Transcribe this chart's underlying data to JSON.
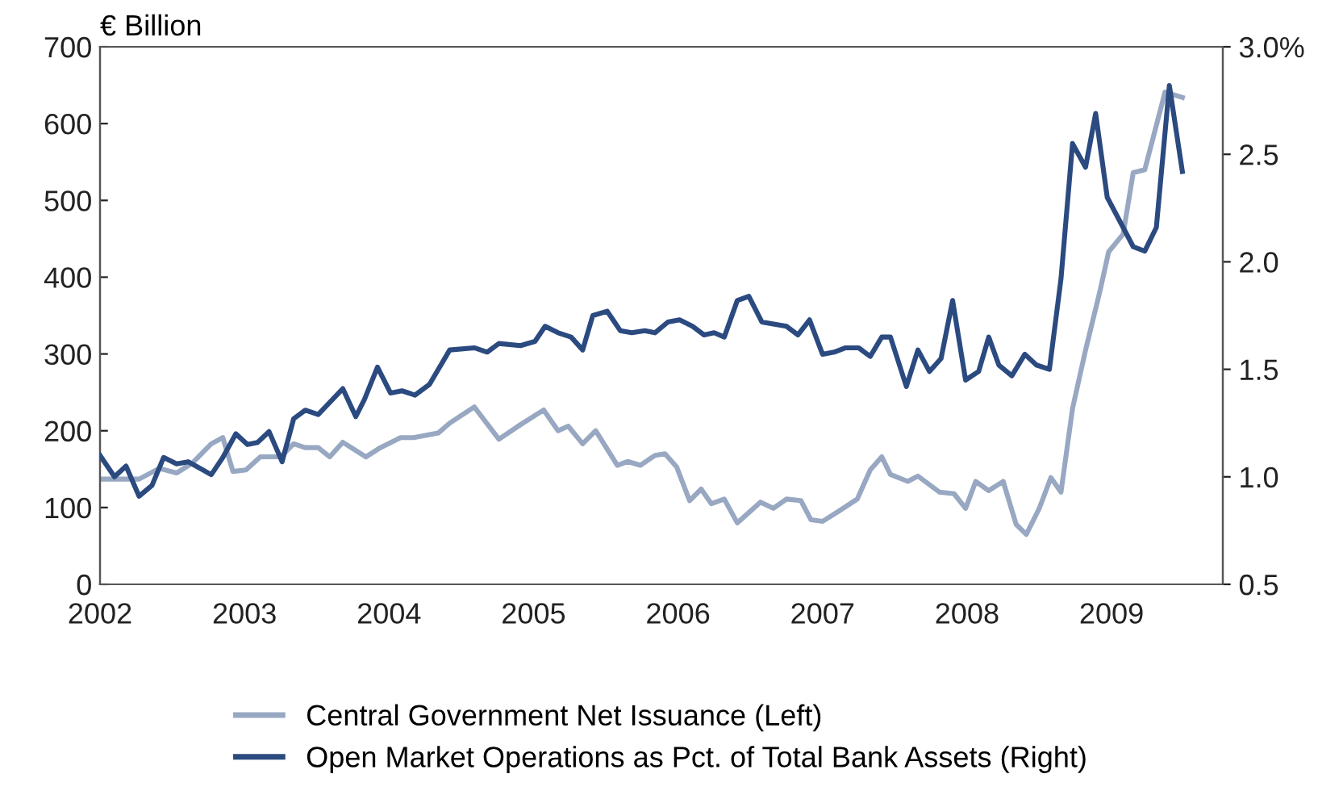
{
  "chart_data": {
    "type": "line",
    "ylabel": "€ Billion",
    "legend": "bottom",
    "grid": false,
    "marker": "none",
    "line_style": "solid",
    "xlim": [
      2002,
      2009.77
    ],
    "xticks": [
      2002,
      2003,
      2004,
      2005,
      2006,
      2007,
      2008,
      2009
    ],
    "ylim": [
      0,
      700
    ],
    "yticks": [
      0,
      100,
      200,
      300,
      400,
      500,
      600,
      700
    ],
    "y2lim": [
      0.5,
      3.0
    ],
    "y2ticks": [
      {
        "value": 0.5,
        "label": "0.5"
      },
      {
        "value": 1.0,
        "label": "1.0"
      },
      {
        "value": 1.5,
        "label": "1.5"
      },
      {
        "value": 2.0,
        "label": "2.0"
      },
      {
        "value": 2.5,
        "label": "2.5"
      },
      {
        "value": 3.0,
        "label": "3.0%"
      }
    ],
    "series": [
      {
        "name": "Central Government Net Issuance (Left)",
        "color": "#98a8c2",
        "x": [
          2002.0,
          2002.1,
          2002.27,
          2002.41,
          2002.53,
          2002.64,
          2002.77,
          2002.85,
          2002.92,
          2003.01,
          2003.11,
          2003.25,
          2003.34,
          2003.42,
          2003.51,
          2003.59,
          2003.68,
          2003.84,
          2003.94,
          2004.08,
          2004.17,
          2004.34,
          2004.42,
          2004.59,
          2004.76,
          2004.91,
          2005.07,
          2005.17,
          2005.24,
          2005.34,
          2005.43,
          2005.58,
          2005.65,
          2005.74,
          2005.84,
          2005.91,
          2005.99,
          2006.08,
          2006.16,
          2006.23,
          2006.32,
          2006.41,
          2006.57,
          2006.66,
          2006.75,
          2006.85,
          2006.92,
          2007.0,
          2007.11,
          2007.24,
          2007.33,
          2007.41,
          2007.47,
          2007.59,
          2007.66,
          2007.81,
          2007.91,
          2007.99,
          2008.06,
          2008.15,
          2008.25,
          2008.34,
          2008.41,
          2008.5,
          2008.58,
          2008.65,
          2008.73,
          2008.82,
          2008.92,
          2008.98,
          2009.08,
          2009.15,
          2009.23,
          2009.37,
          2009.49
        ],
        "values": [
          137,
          137,
          137,
          151,
          145,
          158,
          183,
          191,
          147,
          149,
          166,
          166,
          183,
          178,
          178,
          166,
          185,
          166,
          178,
          191,
          191,
          197,
          210,
          231,
          189,
          208,
          227,
          200,
          206,
          183,
          200,
          155,
          160,
          155,
          168,
          170,
          153,
          109,
          124,
          105,
          111,
          80,
          107,
          99,
          111,
          109,
          84,
          82,
          95,
          111,
          149,
          166,
          143,
          134,
          141,
          120,
          118,
          99,
          134,
          122,
          134,
          78,
          65,
          99,
          139,
          120,
          229,
          305,
          382,
          433,
          456,
          536,
          540,
          641,
          634
        ]
      },
      {
        "name": "Open Market Operations as Pct. of Total Bank Assets (Right)",
        "color": "#2b4a80",
        "axis": "y2",
        "x": [
          2002.0,
          2002.1,
          2002.18,
          2002.27,
          2002.36,
          2002.44,
          2002.53,
          2002.61,
          2002.77,
          2002.85,
          2002.94,
          2003.02,
          2003.09,
          2003.17,
          2003.26,
          2003.34,
          2003.42,
          2003.51,
          2003.68,
          2003.77,
          2003.83,
          2003.92,
          2004.01,
          2004.09,
          2004.18,
          2004.28,
          2004.42,
          2004.59,
          2004.68,
          2004.76,
          2004.91,
          2005.01,
          2005.08,
          2005.17,
          2005.26,
          2005.34,
          2005.41,
          2005.51,
          2005.6,
          2005.68,
          2005.77,
          2005.84,
          2005.93,
          2006.01,
          2006.1,
          2006.18,
          2006.25,
          2006.32,
          2006.41,
          2006.49,
          2006.58,
          2006.75,
          2006.83,
          2006.91,
          2007.0,
          2007.08,
          2007.16,
          2007.25,
          2007.33,
          2007.41,
          2007.47,
          2007.58,
          2007.66,
          2007.74,
          2007.82,
          2007.9,
          2007.99,
          2008.08,
          2008.15,
          2008.22,
          2008.31,
          2008.4,
          2008.48,
          2008.57,
          2008.65,
          2008.73,
          2008.82,
          2008.89,
          2008.97,
          2009.08,
          2009.15,
          2009.23,
          2009.31,
          2009.4,
          2009.49
        ],
        "values": [
          1.1,
          1.0,
          1.05,
          0.91,
          0.96,
          1.09,
          1.06,
          1.07,
          1.01,
          1.09,
          1.2,
          1.15,
          1.16,
          1.21,
          1.07,
          1.27,
          1.31,
          1.29,
          1.41,
          1.28,
          1.36,
          1.51,
          1.39,
          1.4,
          1.38,
          1.43,
          1.59,
          1.6,
          1.58,
          1.62,
          1.61,
          1.63,
          1.7,
          1.67,
          1.65,
          1.59,
          1.75,
          1.77,
          1.68,
          1.67,
          1.68,
          1.67,
          1.72,
          1.73,
          1.7,
          1.66,
          1.67,
          1.65,
          1.82,
          1.84,
          1.72,
          1.7,
          1.66,
          1.73,
          1.57,
          1.58,
          1.6,
          1.6,
          1.56,
          1.65,
          1.65,
          1.42,
          1.59,
          1.49,
          1.55,
          1.82,
          1.45,
          1.49,
          1.65,
          1.52,
          1.47,
          1.57,
          1.52,
          1.5,
          1.92,
          2.55,
          2.44,
          2.69,
          2.3,
          2.16,
          2.07,
          2.05,
          2.16,
          2.82,
          2.42
        ]
      }
    ]
  }
}
